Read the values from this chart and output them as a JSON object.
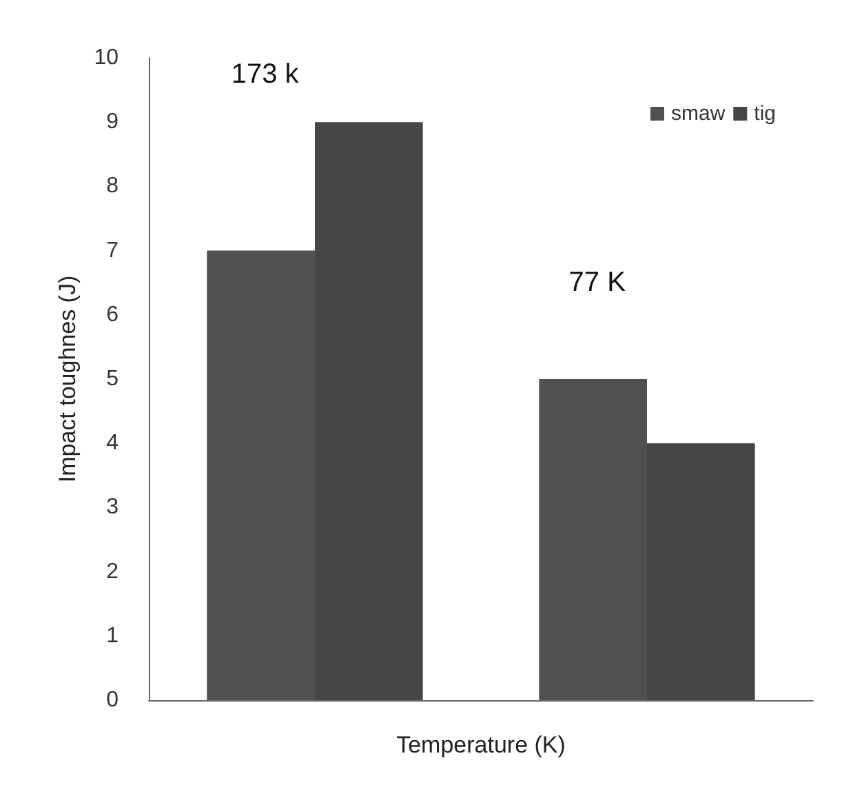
{
  "chart_data": {
    "type": "bar",
    "xlabel": "Temperature (K)",
    "ylabel": "Impact toughnes (J)",
    "categories": [
      null,
      null
    ],
    "series": [
      {
        "name": "smaw",
        "color": "#505050",
        "values": [
          7,
          5
        ]
      },
      {
        "name": "tig",
        "color": "#464646",
        "values": [
          9,
          4
        ]
      }
    ],
    "ylim": [
      0,
      10
    ],
    "yticks": [
      0,
      1,
      2,
      3,
      4,
      5,
      6,
      7,
      8,
      9,
      10
    ],
    "grid": false,
    "legend": "top right",
    "annotations": [
      "173 k",
      "77 K"
    ]
  }
}
